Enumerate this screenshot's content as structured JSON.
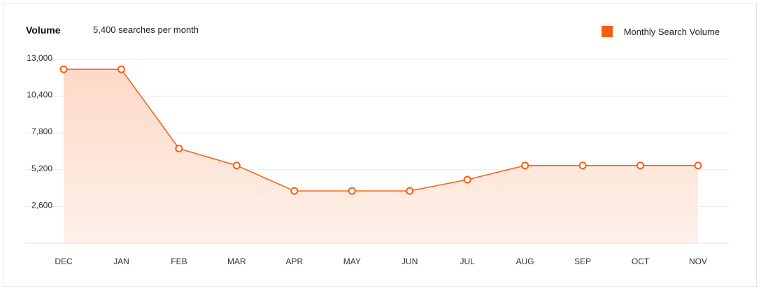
{
  "header": {
    "title": "Volume",
    "subtitle": "5,400 searches per month"
  },
  "legend": {
    "label": "Monthly Search Volume"
  },
  "colors": {
    "accent": "#f95d14",
    "fill_top": "#fdd9c7",
    "fill_bottom": "#fef1ea",
    "grid": "#e9e9e9"
  },
  "chart_data": {
    "type": "area",
    "categories": [
      "DEC",
      "JAN",
      "FEB",
      "MAR",
      "APR",
      "MAY",
      "JUN",
      "JUL",
      "AUG",
      "SEP",
      "OCT",
      "NOV"
    ],
    "series": [
      {
        "name": "Monthly Search Volume",
        "values": [
          12300,
          12300,
          6700,
          5500,
          3700,
          3700,
          3700,
          4500,
          5500,
          5500,
          5500,
          5500
        ]
      }
    ],
    "yticks": [
      2600,
      5200,
      7800,
      10400,
      13000
    ],
    "ytick_labels": [
      "2,600",
      "5,200",
      "7,800",
      "10,400",
      "13,000"
    ],
    "ylim": [
      0,
      13000
    ],
    "grid": true,
    "legend_position": "top-right"
  }
}
